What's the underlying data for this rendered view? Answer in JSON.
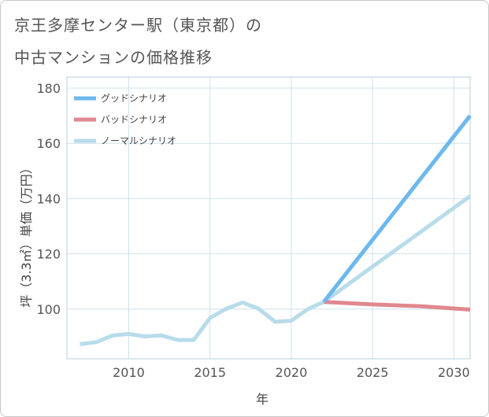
{
  "chart_data": {
    "type": "line",
    "title_lines": [
      "京王多摩センター駅（東京都）の",
      "中古マンションの価格推移"
    ],
    "xlabel": "年",
    "ylabel": "坪（3.3㎡）単価（万円）",
    "xlim": [
      2006.2,
      2031
    ],
    "ylim": [
      82,
      184
    ],
    "x_ticks": [
      2010,
      2015,
      2020,
      2025,
      2030
    ],
    "y_ticks": [
      100,
      120,
      140,
      160,
      180
    ],
    "grid": true,
    "legend_position": "top-left",
    "series": [
      {
        "name": "グッドシナリオ",
        "color": "#6db8ec",
        "width": 5,
        "x": [
          2022,
          2031
        ],
        "y": [
          102.6,
          170
        ]
      },
      {
        "name": "バッドシナリオ",
        "color": "#e0888f",
        "width": 5,
        "x": [
          2022,
          2025,
          2028,
          2031
        ],
        "y": [
          102.6,
          101.7,
          101.0,
          99.8
        ]
      },
      {
        "name": "ノーマルシナリオ",
        "color": "#b8dcea",
        "width": 5,
        "x": [
          2007,
          2008,
          2009,
          2010,
          2011,
          2012,
          2013,
          2014,
          2015,
          2016,
          2017,
          2018,
          2019,
          2020,
          2021,
          2022,
          2031
        ],
        "y": [
          87.3,
          88.0,
          90.4,
          91.0,
          90.1,
          90.5,
          88.8,
          88.8,
          96.8,
          100.1,
          102.4,
          100.1,
          95.4,
          95.8,
          99.9,
          102.6,
          140.9
        ]
      }
    ]
  }
}
